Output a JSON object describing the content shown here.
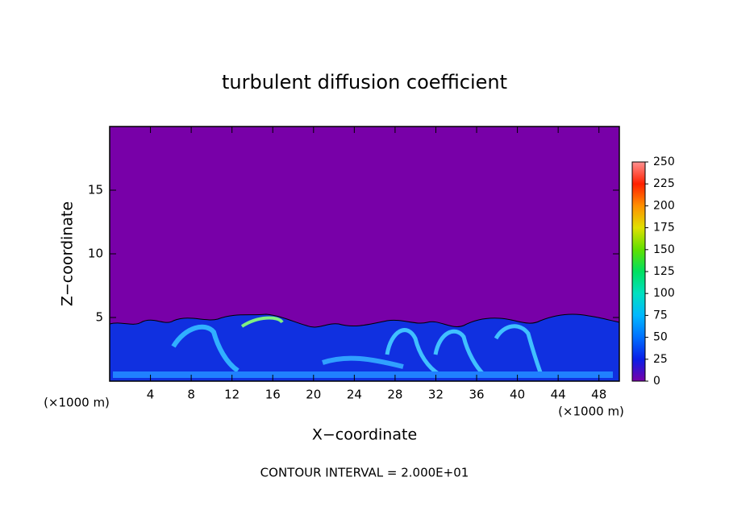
{
  "chart_data": {
    "type": "heatmap",
    "title": "turbulent diffusion coefficient",
    "xlabel": "X−coordinate",
    "ylabel": "Z−coordinate",
    "x_unit_label": "(×1000 m)",
    "footnote": "CONTOUR INTERVAL = 2.000E+01",
    "xlim": [
      0,
      50
    ],
    "xticks": [
      4,
      8,
      12,
      16,
      20,
      24,
      28,
      32,
      36,
      40,
      44,
      48
    ],
    "ylim": [
      0,
      20
    ],
    "yticks": [
      5,
      10,
      15
    ],
    "colorbar": {
      "lim": [
        0,
        250
      ],
      "ticks": [
        0,
        25,
        50,
        75,
        100,
        125,
        150,
        175,
        200,
        225,
        250
      ],
      "colors": [
        "#7800a8",
        "#0a1ee8",
        "#0070ff",
        "#00b8ff",
        "#00e0c0",
        "#00e060",
        "#60e000",
        "#e0e000",
        "#ff9000",
        "#ff2000",
        "#ff9090"
      ]
    }
  }
}
